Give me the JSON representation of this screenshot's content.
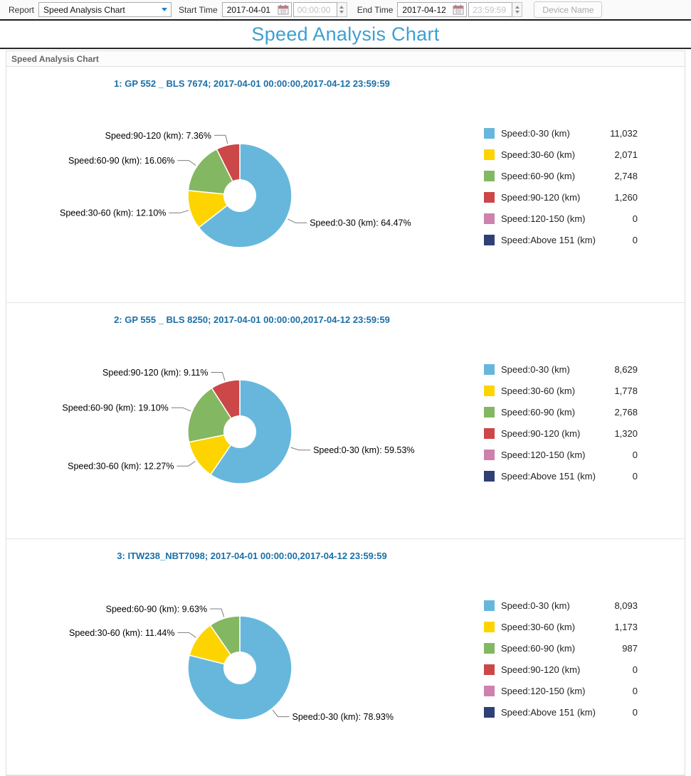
{
  "toolbar": {
    "report_label": "Report",
    "report_value": "Speed Analysis Chart",
    "start_time_label": "Start Time",
    "start_date": "2017-04-01",
    "start_time": "00:00:00",
    "end_time_label": "End Time",
    "end_date": "2017-04-12",
    "end_time": "23:59:59",
    "device_name_label": "Device Name"
  },
  "page_title": "Speed Analysis Chart",
  "panel_header": "Speed Analysis Chart",
  "colors": {
    "page_title_accent": "#3e9fd4",
    "section_title_accent": "#1a6fa8",
    "speed_0_30": "#67b7dc",
    "speed_30_60": "#fdd400",
    "speed_60_90": "#84b761",
    "speed_90_120": "#cc4748",
    "speed_120_150": "#cd82ad",
    "speed_above_151": "#2f4074"
  },
  "chart_data": [
    {
      "type": "pie",
      "title": "1: GP 552 _ BLS 7674; 2017-04-01 00:00:00,2017-04-12 23:59:59",
      "legend_position": "right",
      "slices": [
        {
          "name": "Speed:0-30 (km)",
          "value": 11032,
          "value_text": "11,032",
          "percent": 64.47,
          "percent_text": "64.47%",
          "color": "#67b7dc"
        },
        {
          "name": "Speed:30-60 (km)",
          "value": 2071,
          "value_text": "2,071",
          "percent": 12.1,
          "percent_text": "12.10%",
          "color": "#fdd400"
        },
        {
          "name": "Speed:60-90 (km)",
          "value": 2748,
          "value_text": "2,748",
          "percent": 16.06,
          "percent_text": "16.06%",
          "color": "#84b761"
        },
        {
          "name": "Speed:90-120 (km)",
          "value": 1260,
          "value_text": "1,260",
          "percent": 7.36,
          "percent_text": "7.36%",
          "color": "#cc4748"
        },
        {
          "name": "Speed:120-150 (km)",
          "value": 0,
          "value_text": "0",
          "percent": 0,
          "percent_text": "0%",
          "color": "#cd82ad"
        },
        {
          "name": "Speed:Above 151 (km)",
          "value": 0,
          "value_text": "0",
          "percent": 0,
          "percent_text": "0%",
          "color": "#2f4074"
        }
      ]
    },
    {
      "type": "pie",
      "title": "2: GP 555 _ BLS 8250; 2017-04-01 00:00:00,2017-04-12 23:59:59",
      "legend_position": "right",
      "slices": [
        {
          "name": "Speed:0-30 (km)",
          "value": 8629,
          "value_text": "8,629",
          "percent": 59.53,
          "percent_text": "59.53%",
          "color": "#67b7dc"
        },
        {
          "name": "Speed:30-60 (km)",
          "value": 1778,
          "value_text": "1,778",
          "percent": 12.27,
          "percent_text": "12.27%",
          "color": "#fdd400"
        },
        {
          "name": "Speed:60-90 (km)",
          "value": 2768,
          "value_text": "2,768",
          "percent": 19.1,
          "percent_text": "19.10%",
          "color": "#84b761"
        },
        {
          "name": "Speed:90-120 (km)",
          "value": 1320,
          "value_text": "1,320",
          "percent": 9.11,
          "percent_text": "9.11%",
          "color": "#cc4748"
        },
        {
          "name": "Speed:120-150 (km)",
          "value": 0,
          "value_text": "0",
          "percent": 0,
          "percent_text": "0%",
          "color": "#cd82ad"
        },
        {
          "name": "Speed:Above 151 (km)",
          "value": 0,
          "value_text": "0",
          "percent": 0,
          "percent_text": "0%",
          "color": "#2f4074"
        }
      ]
    },
    {
      "type": "pie",
      "title": "3: ITW238_NBT7098; 2017-04-01 00:00:00,2017-04-12 23:59:59",
      "legend_position": "right",
      "slices": [
        {
          "name": "Speed:0-30 (km)",
          "value": 8093,
          "value_text": "8,093",
          "percent": 78.93,
          "percent_text": "78.93%",
          "color": "#67b7dc"
        },
        {
          "name": "Speed:30-60 (km)",
          "value": 1173,
          "value_text": "1,173",
          "percent": 11.44,
          "percent_text": "11.44%",
          "color": "#fdd400"
        },
        {
          "name": "Speed:60-90 (km)",
          "value": 987,
          "value_text": "987",
          "percent": 9.63,
          "percent_text": "9.63%",
          "color": "#84b761"
        },
        {
          "name": "Speed:90-120 (km)",
          "value": 0,
          "value_text": "0",
          "percent": 0,
          "percent_text": "0%",
          "color": "#cc4748"
        },
        {
          "name": "Speed:120-150 (km)",
          "value": 0,
          "value_text": "0",
          "percent": 0,
          "percent_text": "0%",
          "color": "#cd82ad"
        },
        {
          "name": "Speed:Above 151 (km)",
          "value": 0,
          "value_text": "0",
          "percent": 0,
          "percent_text": "0%",
          "color": "#2f4074"
        }
      ]
    }
  ]
}
